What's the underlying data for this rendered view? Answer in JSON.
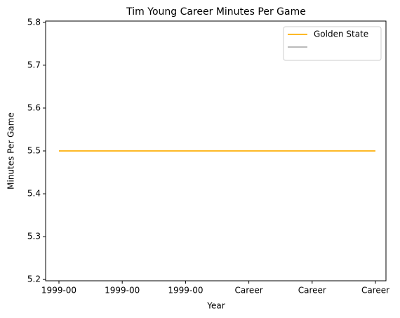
{
  "chart_data": {
    "type": "line",
    "title": "Tim Young  Career Minutes Per Game",
    "x_label": "Year",
    "y_label": "Minutes Per Game",
    "categories": [
      "1999-00",
      "1999-00",
      "1999-00",
      "Career",
      "Career",
      "Career"
    ],
    "series": [
      {
        "color": "#bbbbbb",
        "values": [
          5.5,
          5.5,
          5.5,
          5.5,
          5.5,
          5.5
        ]
      },
      {
        "name": "Golden State",
        "color": "#fdb927",
        "values": [
          5.5,
          5.5,
          5.5,
          5.5,
          5.5,
          5.5
        ]
      }
    ],
    "ylim": [
      5.197,
      5.803
    ],
    "yticks": [
      5.2,
      5.3,
      5.4,
      5.5,
      5.6,
      5.7,
      5.8
    ],
    "legend": "upper right"
  }
}
